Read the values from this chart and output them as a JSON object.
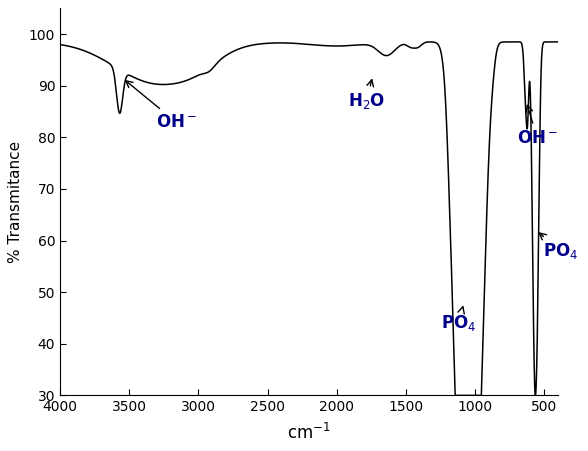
{
  "title": "",
  "xlabel": "cm$^{-1}$",
  "ylabel": "% Transmitance",
  "xlim": [
    4000,
    400
  ],
  "ylim": [
    30,
    105
  ],
  "yticks": [
    30,
    40,
    50,
    60,
    70,
    80,
    90,
    100
  ],
  "xticks": [
    4000,
    3500,
    3000,
    2500,
    2000,
    1500,
    1000,
    500
  ],
  "line_color": "#000000",
  "bg_color": "#ffffff",
  "font_color": "#00008B",
  "annot_color": "#000000"
}
